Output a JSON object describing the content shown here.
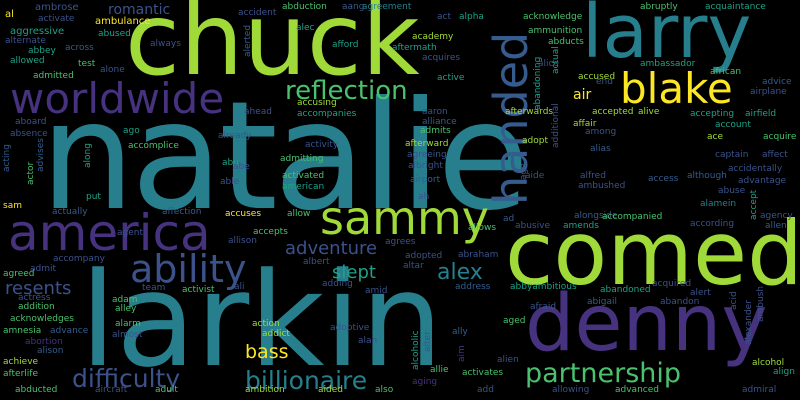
{
  "palette": {
    "background": "#000000",
    "purple": "#46327e",
    "indigo": "#3b528b",
    "blue": "#365c8d",
    "teal": "#277f8e",
    "green": "#1fa187",
    "lightgreen": "#4ac16d",
    "lime": "#a0da39",
    "yellow": "#fde725"
  },
  "words": {
    "natalie": "natalie",
    "chuck": "chuck",
    "larkin": "larkin",
    "comedy": "comedy",
    "denny": "denny",
    "larry": "larry",
    "america": "america",
    "sammy": "sammy",
    "worldwide": "worldwide",
    "handed": "handed",
    "blake": "blake",
    "ability": "ability",
    "reflection": "reflection",
    "partnership": "partnership",
    "billionaire": "billionaire",
    "difficulty": "difficulty",
    "adventure": "adventure",
    "alex": "alex",
    "slept": "slept",
    "bass": "bass",
    "resents": "resents",
    "air": "air",
    "al": "al",
    "abbey": "abbey",
    "abducted": "abducted",
    "abduction": "abduction",
    "aang": "aang",
    "agreement": "agreement",
    "act": "act",
    "alpha": "alpha",
    "acknowledge": "acknowledge",
    "abruptly": "abruptly",
    "acquaintance": "acquaintance",
    "ambrose": "ambrose",
    "activate": "activate",
    "ambulance": "ambulance",
    "romantic": "romantic",
    "accident": "accident",
    "alec": "alec",
    "academy": "academy",
    "ammunition": "ammunition",
    "alice": "alice",
    "aggressive": "aggressive",
    "alternate": "alternate",
    "abused": "abused",
    "always": "always",
    "alerted": "alerted",
    "afford": "afford",
    "aftermath": "aftermath",
    "abducts": "abducts",
    "actual": "actual",
    "allowed": "allowed",
    "test": "test",
    "across": "across",
    "acquires": "acquires",
    "abandoning": "abandoning",
    "ambassador": "ambassador",
    "african": "african",
    "admitted": "admitted",
    "alone": "alone",
    "active": "active",
    "accused": "accused",
    "end": "end",
    "advice": "advice",
    "airplane": "airplane",
    "ahead": "ahead",
    "accusing": "accusing",
    "accompanies": "accompanies",
    "aaron": "aaron",
    "aboard": "aboard",
    "alliance": "alliance",
    "afterwards": "afterwards",
    "affair": "affair",
    "accepted": "accepted",
    "alive": "alive",
    "accepting": "accepting",
    "airfield": "airfield",
    "absence": "absence",
    "ago": "ago",
    "already": "already",
    "admits": "admits",
    "among": "among",
    "account": "account",
    "acting": "acting",
    "advises": "advises",
    "accomplice": "accomplice",
    "activity": "activity",
    "afterward": "afterward",
    "adopt": "adopt",
    "additional": "additional",
    "alias": "alias",
    "ace": "ace",
    "acquire": "acquire",
    "actor": "actor",
    "abu": "abu",
    "admitting": "admitting",
    "agreeing": "agreeing",
    "age": "age",
    "captain": "captain",
    "affect": "affect",
    "along": "along",
    "albright": "albright",
    "alfred": "alfred",
    "accidentally": "accidentally",
    "able": "able",
    "activated": "activated",
    "airport": "airport",
    "aide": "aide",
    "access": "access",
    "although": "although",
    "advantage": "advantage",
    "ambushed": "ambushed",
    "abe": "abe",
    "american": "american",
    "abuse": "abuse",
    "ah": "ah",
    "accept": "accept",
    "put": "put",
    "sam": "sam",
    "alamein": "alamein",
    "actually": "actually",
    "affection": "affection",
    "accuses": "accuses",
    "allow": "allow",
    "agency": "agency",
    "ad": "ad",
    "alongside": "alongside",
    "allen": "allen",
    "agent": "agent",
    "allison": "allison",
    "accepts": "accepts",
    "allows": "allows",
    "abusive": "abusive",
    "amends": "amends",
    "accompanied": "accompanied",
    "according": "according",
    "albert": "albert",
    "accompany": "accompany",
    "adopted": "adopted",
    "abraham": "abraham",
    "agrees": "agrees",
    "altar": "altar",
    "agreed": "agreed",
    "admit": "admit",
    "team": "team",
    "ali": "ali",
    "activist": "activist",
    "adding": "adding",
    "address": "address",
    "abbyambitious": "abbyambitious",
    "acquired": "acquired",
    "alert": "alert",
    "acid": "acid",
    "ambush": "ambush",
    "actress": "actress",
    "adam": "adam",
    "amid": "amid",
    "abandoned": "abandoned",
    "abigail": "abigail",
    "abandon": "abandon",
    "addition": "addition",
    "alley": "alley",
    "afraid": "afraid",
    "alexander": "alexander",
    "acknowledges": "acknowledges",
    "alarm": "alarm",
    "action": "action",
    "aged": "aged",
    "amnesia": "amnesia",
    "advance": "advance",
    "almost": "almost",
    "addict": "addict",
    "ally": "ally",
    "abortion": "abortion",
    "adoptive": "adoptive",
    "alison": "alison",
    "alan": "alan",
    "alcoholic": "alcoholic",
    "alter": "alter",
    "aim": "aim",
    "alien": "alien",
    "alcohol": "alcohol",
    "achieve": "achieve",
    "afterlife": "afterlife",
    "allie": "allie",
    "activates": "activates",
    "allowing": "allowing",
    "align": "align",
    "adult": "adult",
    "ambition": "ambition",
    "aided": "aided",
    "also": "also",
    "aging": "aging",
    "add": "add",
    "advanced": "advanced",
    "admiral": "admiral",
    "aircraft": "aircraft"
  }
}
